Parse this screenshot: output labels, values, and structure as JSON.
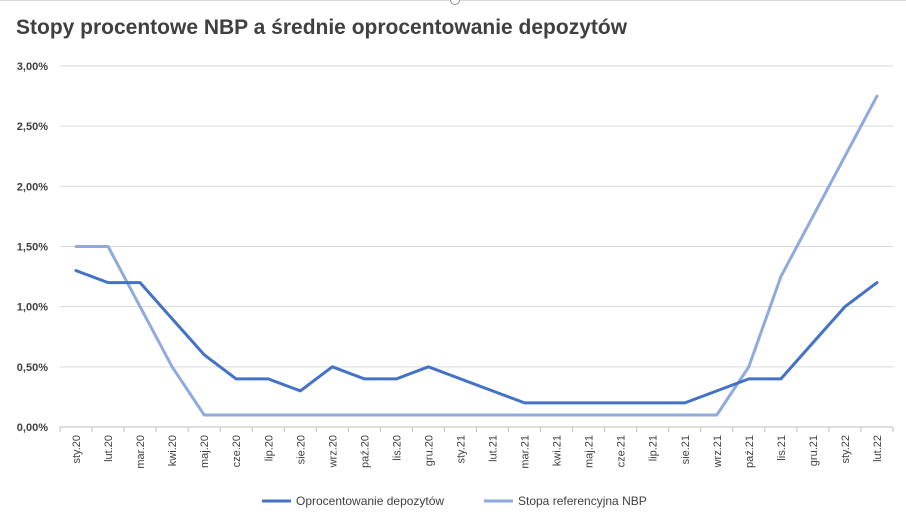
{
  "chart_data": {
    "type": "line",
    "title": "Stopy procentowe NBP a średnie oprocentowanie depozytów",
    "xlabel": "",
    "ylabel": "",
    "categories": [
      "sty.20",
      "lut.20",
      "mar.20",
      "kwi.20",
      "maj.20",
      "cze.20",
      "lip.20",
      "sie.20",
      "wrz.20",
      "paź.20",
      "lis.20",
      "gru.20",
      "sty.21",
      "lut.21",
      "mar.21",
      "kwi.21",
      "maj.21",
      "cze.21",
      "lip.21",
      "sie.21",
      "wrz.21",
      "paź.21",
      "lis.21",
      "gru.21",
      "sty.22",
      "lut.22"
    ],
    "y_ticks": [
      "0,00%",
      "0,50%",
      "1,00%",
      "1,50%",
      "2,00%",
      "2,50%",
      "3,00%"
    ],
    "ylim": [
      0,
      3.0
    ],
    "grid": true,
    "legend_position": "bottom",
    "series": [
      {
        "name": "Oprocentowanie depozytów",
        "color": "#4472c4",
        "values": [
          1.3,
          1.2,
          1.2,
          0.9,
          0.6,
          0.4,
          0.4,
          0.3,
          0.5,
          0.4,
          0.4,
          0.5,
          0.4,
          0.3,
          0.2,
          0.2,
          0.2,
          0.2,
          0.2,
          0.2,
          0.3,
          0.4,
          0.4,
          0.7,
          1.0,
          1.2
        ]
      },
      {
        "name": "Stopa referencyjna NBP",
        "color": "#8faadc",
        "values": [
          1.5,
          1.5,
          1.0,
          0.5,
          0.1,
          0.1,
          0.1,
          0.1,
          0.1,
          0.1,
          0.1,
          0.1,
          0.1,
          0.1,
          0.1,
          0.1,
          0.1,
          0.1,
          0.1,
          0.1,
          0.1,
          0.5,
          1.25,
          1.75,
          2.25,
          2.75
        ]
      }
    ]
  }
}
